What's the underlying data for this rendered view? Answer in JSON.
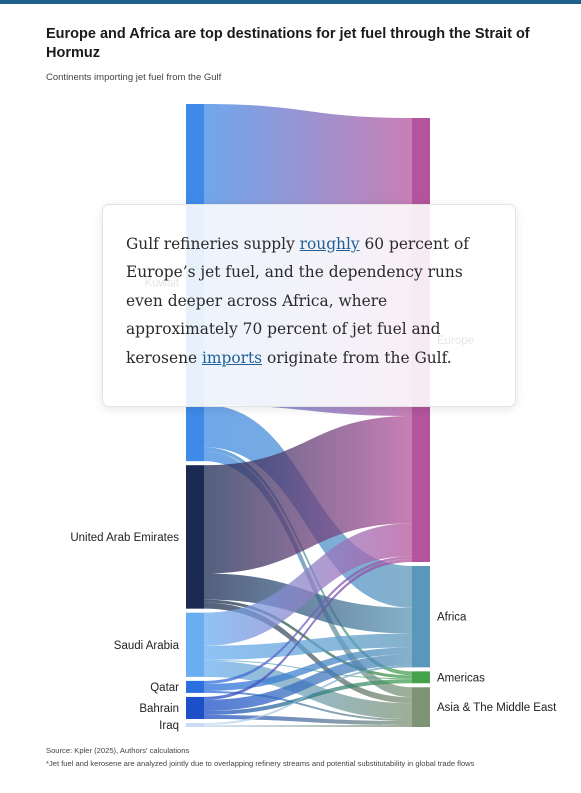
{
  "header": {
    "title": "Europe and Africa are top destinations for jet fuel through the Strait of Hormuz",
    "subtitle": "Continents importing jet fuel from the Gulf"
  },
  "callout": {
    "part1": "Gulf refineries supply ",
    "link1": "roughly",
    "part2": " 60 percent of Europe’s jet fuel, and the dependency runs even deeper across Africa, where approximately 70 percent of jet fuel and kerosene ",
    "link2": "imports",
    "part3": " originate from the Gulf."
  },
  "footer": {
    "source": "Source: Kpler (2025), Authors' calculations",
    "note": "*Jet fuel and kerosene are analyzed jointly due to overlapping refinery streams and potential substitutability in global trade flows"
  },
  "colors": {
    "kuwait": "#3e8ae6",
    "uae": "#1a2a52",
    "saudi": "#6aaef2",
    "qatar": "#2a6fdf",
    "bahrain": "#1d4fc8",
    "iraq": "#c8dcf4",
    "europe": "#b4549c",
    "africa": "#5b97b8",
    "americas": "#46a14c",
    "asia": "#7e9373"
  },
  "chart_data": {
    "type": "sankey",
    "sources": [
      {
        "id": "kuwait",
        "label": "Kuwait"
      },
      {
        "id": "uae",
        "label": "United Arab Emirates"
      },
      {
        "id": "saudi",
        "label": "Saudi Arabia"
      },
      {
        "id": "qatar",
        "label": "Qatar"
      },
      {
        "id": "bahrain",
        "label": "Bahrain"
      },
      {
        "id": "iraq",
        "label": "Iraq"
      }
    ],
    "targets": [
      {
        "id": "europe",
        "label": "Europe"
      },
      {
        "id": "africa",
        "label": "Africa"
      },
      {
        "id": "americas",
        "label": "Americas"
      },
      {
        "id": "asia",
        "label": "Asia & The Middle East"
      }
    ],
    "links": [
      {
        "source": "kuwait",
        "target": "europe",
        "value": 300
      },
      {
        "source": "kuwait",
        "target": "africa",
        "value": 42
      },
      {
        "source": "kuwait",
        "target": "americas",
        "value": 4
      },
      {
        "source": "kuwait",
        "target": "asia",
        "value": 10
      },
      {
        "source": "uae",
        "target": "europe",
        "value": 108
      },
      {
        "source": "uae",
        "target": "africa",
        "value": 26
      },
      {
        "source": "uae",
        "target": "americas",
        "value": 3
      },
      {
        "source": "uae",
        "target": "asia",
        "value": 6
      },
      {
        "source": "saudi",
        "target": "europe",
        "value": 33
      },
      {
        "source": "saudi",
        "target": "africa",
        "value": 14
      },
      {
        "source": "saudi",
        "target": "americas",
        "value": 1
      },
      {
        "source": "saudi",
        "target": "asia",
        "value": 16
      },
      {
        "source": "qatar",
        "target": "europe",
        "value": 3
      },
      {
        "source": "qatar",
        "target": "africa",
        "value": 7
      },
      {
        "source": "qatar",
        "target": "asia",
        "value": 2
      },
      {
        "source": "bahrain",
        "target": "europe",
        "value": 3
      },
      {
        "source": "bahrain",
        "target": "africa",
        "value": 11
      },
      {
        "source": "bahrain",
        "target": "americas",
        "value": 4
      },
      {
        "source": "bahrain",
        "target": "asia",
        "value": 4
      },
      {
        "source": "iraq",
        "target": "africa",
        "value": 2
      },
      {
        "source": "iraq",
        "target": "asia",
        "value": 2
      }
    ]
  }
}
